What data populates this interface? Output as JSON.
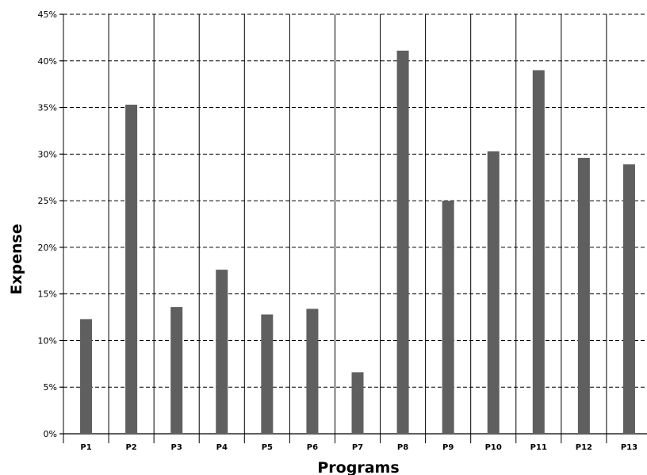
{
  "chart_data": {
    "type": "bar",
    "title": "",
    "xlabel": "Programs",
    "ylabel": "Expense",
    "categories": [
      "P1",
      "P2",
      "P3",
      "P4",
      "P5",
      "P6",
      "P7",
      "P8",
      "P9",
      "P10",
      "P11",
      "P12",
      "P13"
    ],
    "values": [
      12.3,
      35.3,
      13.6,
      17.6,
      12.8,
      13.4,
      6.6,
      41.1,
      25.0,
      30.3,
      39.0,
      29.6,
      28.9
    ],
    "ylim": [
      0,
      45
    ],
    "yticks": [
      "0%",
      "5%",
      "10%",
      "15%",
      "20%",
      "25%",
      "30%",
      "35%",
      "40%",
      "45%"
    ],
    "y_tick_values": [
      0,
      5,
      10,
      15,
      20,
      25,
      30,
      35,
      40,
      45
    ],
    "grid": true,
    "legend": "none",
    "bar_color": "#5f5f5f"
  }
}
